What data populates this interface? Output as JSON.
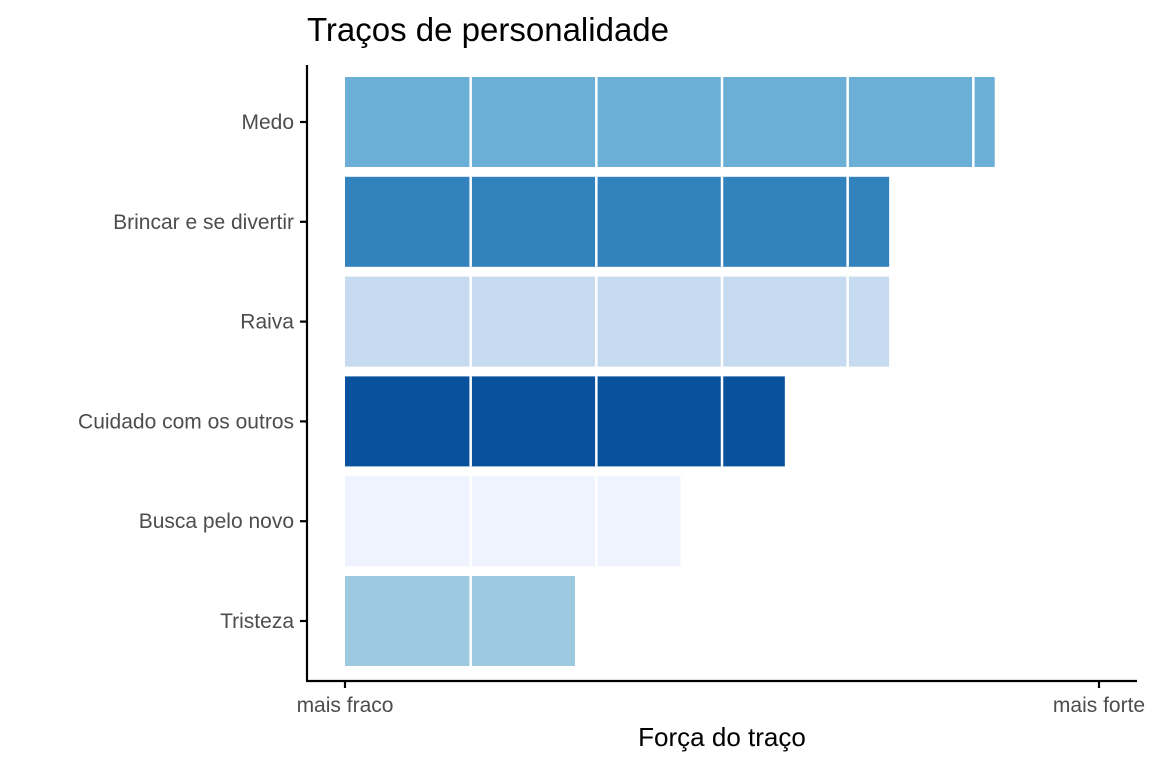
{
  "chart_data": {
    "type": "bar",
    "orientation": "horizontal",
    "title": "Traços de personalidade",
    "xlabel": "Força do traço",
    "ylabel": "",
    "x_tick_labels": [
      "mais fraco",
      "mais forte"
    ],
    "xlim": [
      0,
      6
    ],
    "categories": [
      "Medo",
      "Brincar e se divertir",
      "Raiva",
      "Cuidado com os outros",
      "Busca pelo novo",
      "Tristeza"
    ],
    "values": [
      5.17,
      4.33,
      4.33,
      3.5,
      2.67,
      1.83
    ],
    "segment_unit": 1,
    "colors": [
      "#6baed6",
      "#3182bd",
      "#c6dbef",
      "#08519c",
      "#eff3ff",
      "#9ecae1"
    ],
    "grid": false,
    "legend": "none"
  }
}
